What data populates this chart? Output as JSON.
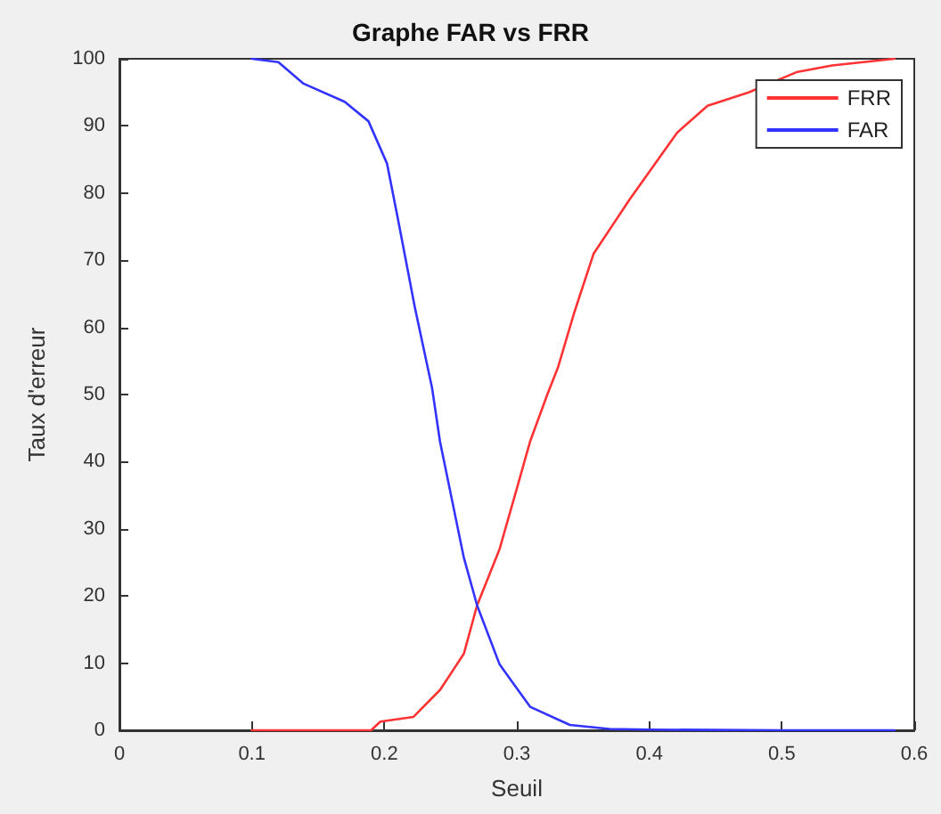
{
  "chart_data": {
    "type": "line",
    "title": "Graphe FAR vs FRR",
    "xlabel": "Seuil",
    "ylabel": "Taux d'erreur",
    "xlim": [
      0,
      0.6
    ],
    "xticks": [
      0,
      0.1,
      0.2,
      0.3,
      0.4,
      0.5,
      0.6
    ],
    "ylim": [
      0,
      100
    ],
    "yticks": [
      0,
      10,
      20,
      30,
      40,
      50,
      60,
      70,
      80,
      90,
      100
    ],
    "grid": false,
    "legend": "top right",
    "marker": "none",
    "line_style": "solid",
    "series": [
      {
        "name": "FRR",
        "color": "#ff3333",
        "x": [
          0.1,
          0.15,
          0.19,
          0.197,
          0.222,
          0.242,
          0.26,
          0.27,
          0.287,
          0.3,
          0.31,
          0.323,
          0.331,
          0.343,
          0.358,
          0.385,
          0.421,
          0.444,
          0.475,
          0.511,
          0.538,
          0.585
        ],
        "values": [
          0,
          0,
          0,
          1.3,
          2,
          6,
          11.4,
          18.6,
          27,
          36,
          43,
          50,
          54,
          62,
          71,
          79,
          89,
          93,
          95,
          98,
          99,
          100
        ]
      },
      {
        "name": "FAR",
        "color": "#3333ff",
        "x": [
          0.1,
          0.12,
          0.139,
          0.17,
          0.188,
          0.202,
          0.21,
          0.223,
          0.236,
          0.242,
          0.26,
          0.27,
          0.287,
          0.31,
          0.34,
          0.37,
          0.4,
          0.5,
          0.585
        ],
        "values": [
          100,
          99.5,
          96.3,
          93.6,
          90.7,
          84.4,
          76.4,
          63,
          51,
          43,
          25.7,
          18.6,
          9.8,
          3.5,
          0.8,
          0.2,
          0.1,
          0,
          0
        ]
      }
    ]
  }
}
